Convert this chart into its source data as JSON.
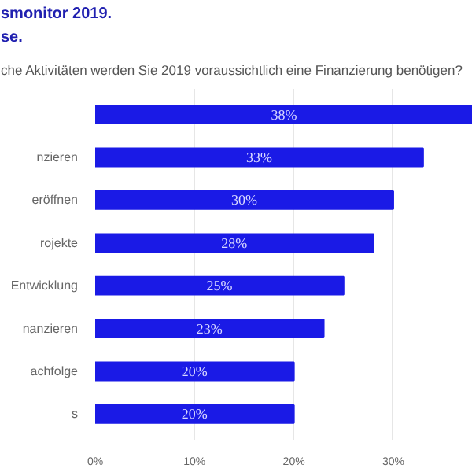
{
  "chart_data": {
    "type": "bar",
    "orientation": "horizontal",
    "title": "smonitor 2019.",
    "subtitle": "se.",
    "annotations": [
      "che Aktivitäten werden Sie 2019 voraussichtlich eine Finanzierung benötigen?"
    ],
    "categories": [
      null,
      "nzieren",
      "eröffnen",
      "rojekte",
      "Entwicklung",
      "nanzieren",
      "achfolge",
      "s"
    ],
    "values": [
      38,
      33,
      30,
      28,
      25,
      23,
      20,
      20
    ],
    "value_labels": [
      "38%",
      "33%",
      "30%",
      "28%",
      "25%",
      "23%",
      "20%",
      "20%"
    ],
    "color": "#1a1ae6",
    "xlim": [
      0,
      38
    ],
    "xticks": [
      {
        "value": 0,
        "label": "0%"
      },
      {
        "value": 10,
        "label": "10%"
      },
      {
        "value": 20,
        "label": "20%"
      },
      {
        "value": 30,
        "label": "30%"
      }
    ],
    "grid": "x"
  }
}
